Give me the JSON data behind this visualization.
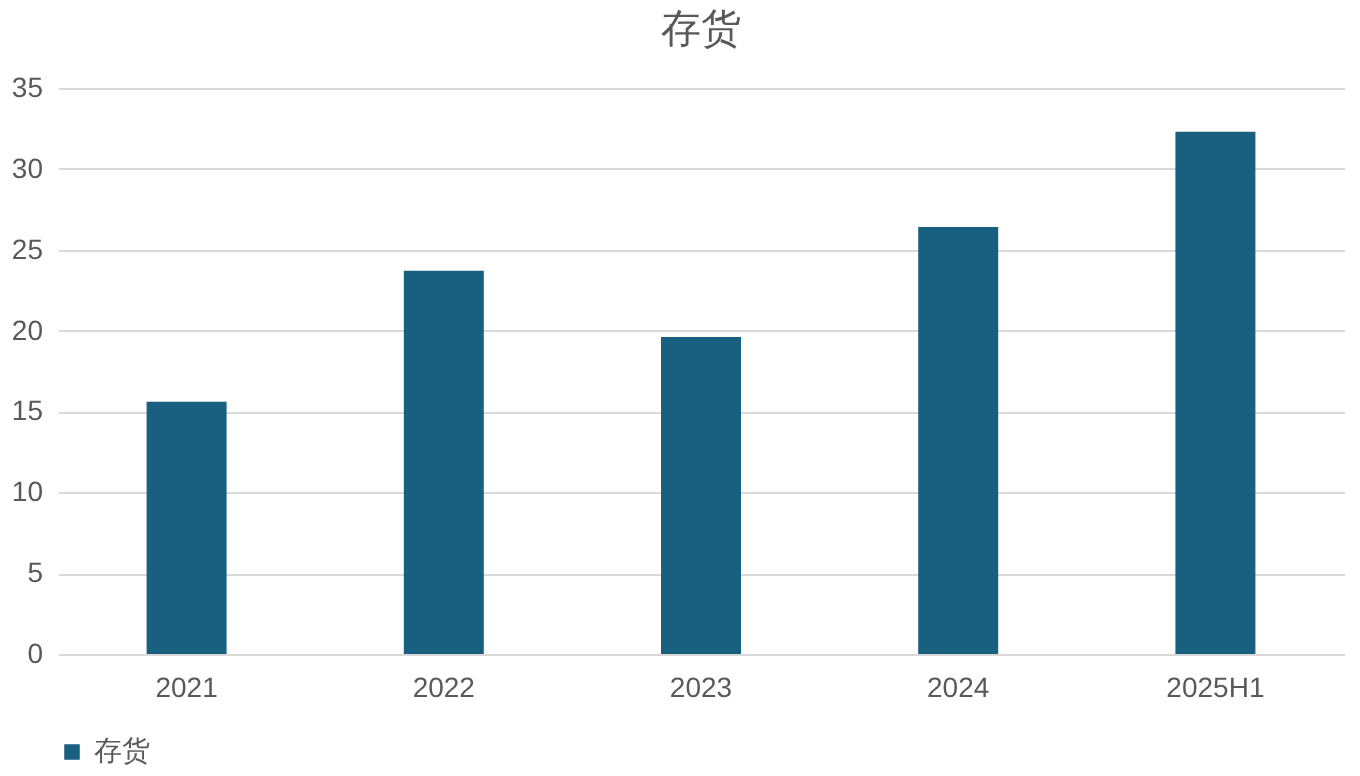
{
  "chart_data": {
    "type": "bar",
    "title": "存货",
    "categories": [
      "2021",
      "2022",
      "2023",
      "2024",
      "2025H1"
    ],
    "series": [
      {
        "name": "存货",
        "color": "#195f80",
        "values": [
          15.6,
          23.7,
          19.6,
          26.4,
          32.3
        ]
      }
    ],
    "ylim": [
      0,
      35
    ],
    "yticks": [
      0,
      5,
      10,
      15,
      20,
      25,
      30,
      35
    ],
    "grid": "y",
    "legend": "bottom"
  }
}
